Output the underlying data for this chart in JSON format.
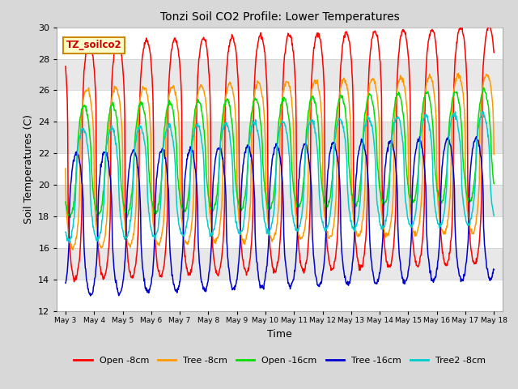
{
  "title": "Tonzi Soil CO2 Profile: Lower Temperatures",
  "xlabel": "Time",
  "ylabel": "Soil Temperatures (C)",
  "ylim": [
    12,
    30
  ],
  "yticks": [
    12,
    14,
    16,
    18,
    20,
    22,
    24,
    26,
    28,
    30
  ],
  "fig_bg": "#d8d8d8",
  "plot_bg": "#ffffff",
  "band_colors": [
    "#ffffff",
    "#e8e8e8"
  ],
  "annotation_text": "TZ_soilco2",
  "annotation_fg": "#cc0000",
  "annotation_bg": "#ffffcc",
  "annotation_border": "#cc8800",
  "series": [
    {
      "label": "Open -8cm",
      "color": "#ff0000",
      "amp": 7.5,
      "base": 21.5,
      "phase": 0.0,
      "sharpness": 3.0
    },
    {
      "label": "Tree -8cm",
      "color": "#ff9900",
      "amp": 5.0,
      "base": 21.0,
      "phase": 0.08,
      "sharpness": 2.5
    },
    {
      "label": "Open -16cm",
      "color": "#00dd00",
      "amp": 3.5,
      "base": 21.5,
      "phase": 0.18,
      "sharpness": 1.5
    },
    {
      "label": "Tree -16cm",
      "color": "#0000cc",
      "amp": 4.5,
      "base": 17.5,
      "phase": 0.45,
      "sharpness": 2.0
    },
    {
      "label": "Tree2 -8cm",
      "color": "#00cccc",
      "amp": 3.5,
      "base": 20.0,
      "phase": 0.22,
      "sharpness": 1.8
    }
  ],
  "xstart_day": 3,
  "xend_day": 18,
  "xtick_days": [
    3,
    4,
    5,
    6,
    7,
    8,
    9,
    10,
    11,
    12,
    13,
    14,
    15,
    16,
    17,
    18
  ],
  "num_points": 1000
}
